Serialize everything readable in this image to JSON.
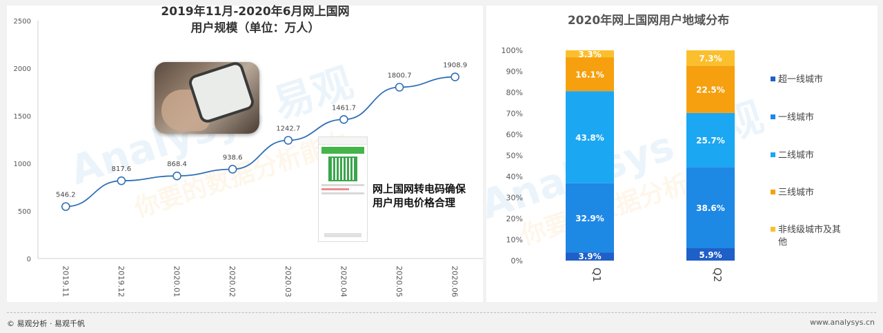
{
  "chart_data": [
    {
      "type": "line",
      "title": "2019年11月-2020年6月网上国网\n用户规模（单位：万人）",
      "categories": [
        "2019.11",
        "2019.12",
        "2020.01",
        "2020.02",
        "2020.03",
        "2020.04",
        "2020.05",
        "2020.06"
      ],
      "series": [
        {
          "values": [
            546.2,
            817.6,
            868.4,
            938.6,
            1242.7,
            1461.7,
            1800.7,
            1908.9
          ]
        }
      ],
      "value_labels": [
        "546.2",
        "817.6",
        "868.4",
        "938.6",
        "1242.7",
        "1461.7",
        "1800.7",
        "1908.9"
      ],
      "yticks": [
        0,
        500,
        1000,
        1500,
        2000,
        2500
      ],
      "ylim": [
        0,
        2500
      ],
      "xlabel": "",
      "ylabel": "",
      "grid": false,
      "colors": {
        "line": "#2f6fb5",
        "marker_fill": "#ffffff"
      }
    },
    {
      "type": "bar",
      "stacked": true,
      "title": "2020年网上国网用户地域分布",
      "categories": [
        "Q1",
        "Q2"
      ],
      "series": [
        {
          "name": "超一线城市",
          "values": [
            3.9,
            5.9
          ],
          "labels": [
            "3.9%",
            "5.9%"
          ],
          "color": "#1f5fc8"
        },
        {
          "name": "一线城市",
          "values": [
            32.9,
            38.6
          ],
          "labels": [
            "32.9%",
            "38.6%"
          ],
          "color": "#1e88e5"
        },
        {
          "name": "二线城市",
          "values": [
            43.8,
            25.7
          ],
          "labels": [
            "43.8%",
            "25.7%"
          ],
          "color": "#1ba7f2"
        },
        {
          "name": "三线城市",
          "values": [
            16.1,
            22.5
          ],
          "labels": [
            "16.1%",
            "22.5%"
          ],
          "color": "#f6a00f"
        },
        {
          "name": "非线级城市及其他",
          "values": [
            3.3,
            7.3
          ],
          "labels": [
            "3.3%",
            "7.3%"
          ],
          "color": "#fbbf2e"
        }
      ],
      "yticks": [
        "0%",
        "10%",
        "20%",
        "30%",
        "40%",
        "50%",
        "60%",
        "70%",
        "80%",
        "90%",
        "100%"
      ],
      "ylim": [
        0,
        100
      ],
      "legend": "right",
      "xlabel": "",
      "ylabel": ""
    }
  ],
  "callout": "网上国网转电码确保用户用电价格合理",
  "watermark": {
    "brand": "Analysys 易观",
    "slogan": "你要的数据分析能力"
  },
  "footer": {
    "left": "© 易观分析 · 易观千帆",
    "right": "www.analysys.cn"
  }
}
